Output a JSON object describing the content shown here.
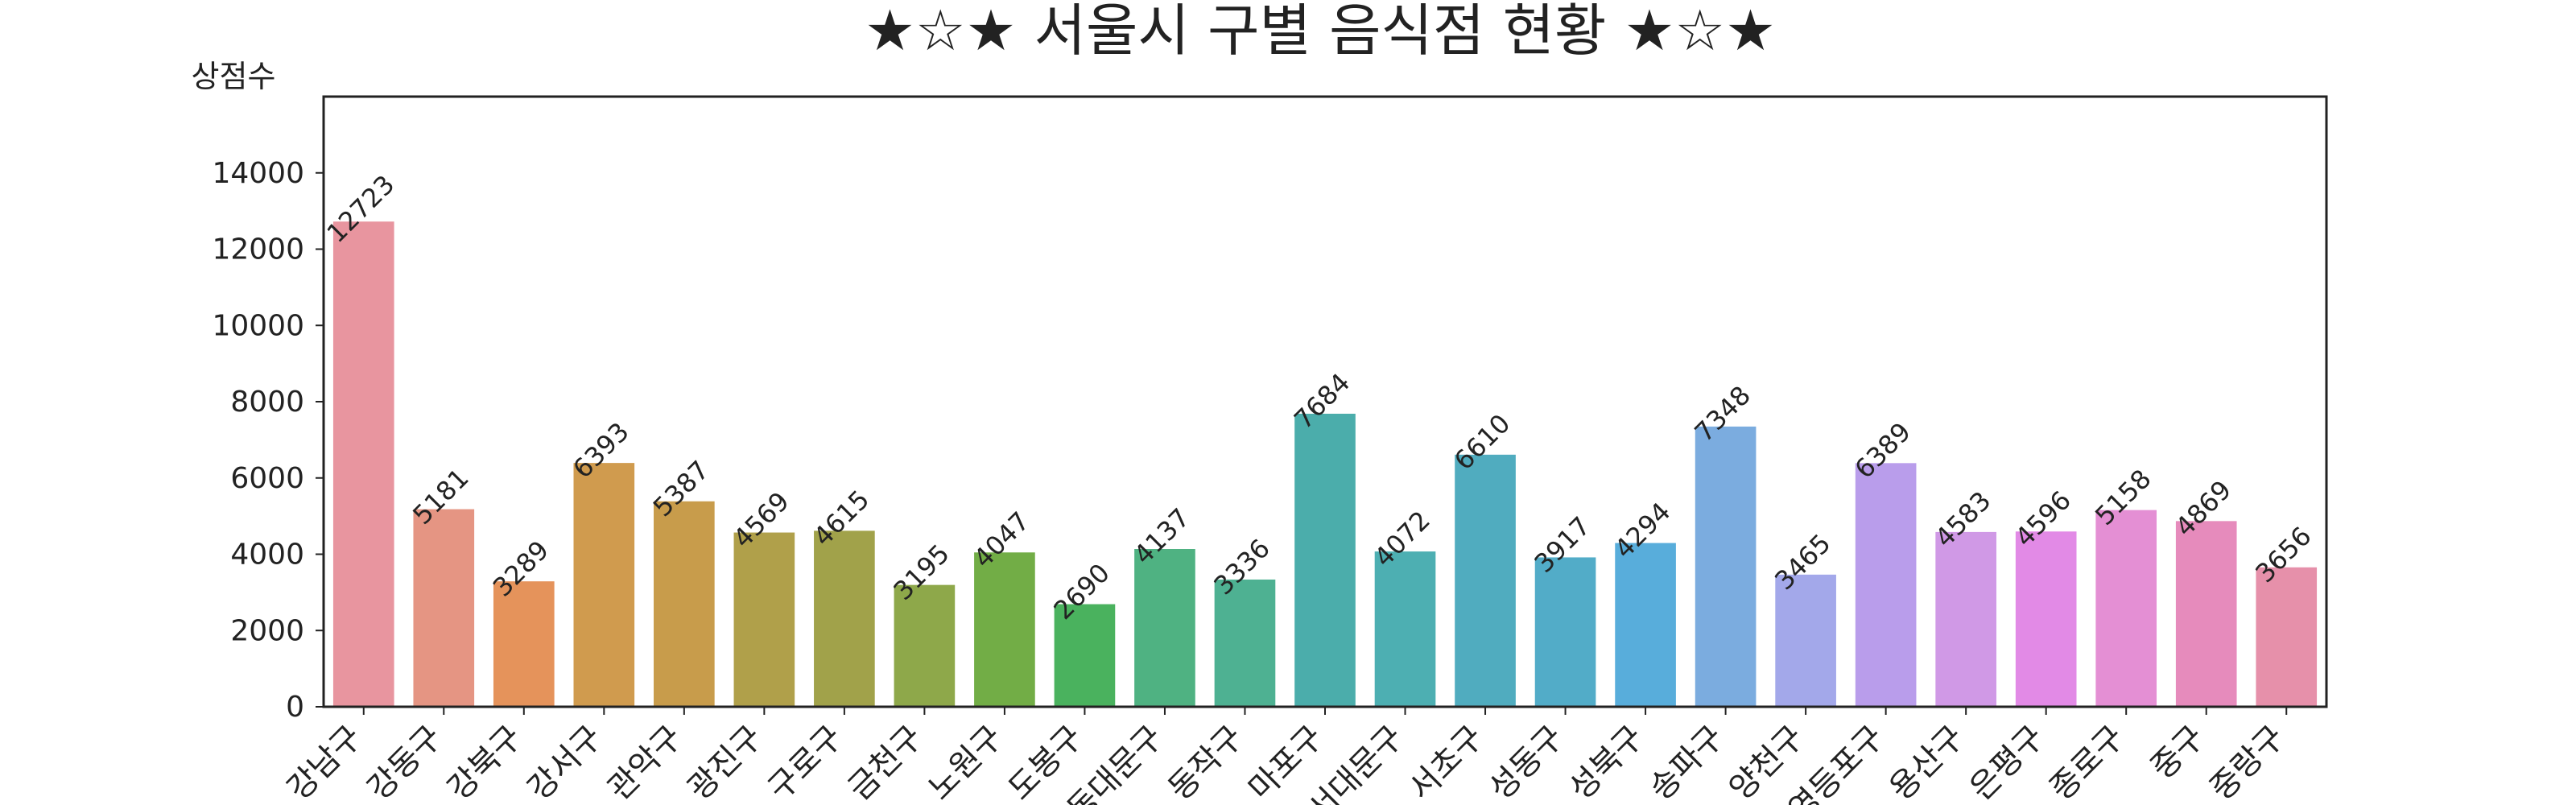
{
  "chart_data": {
    "type": "bar",
    "title": "★☆★ 서울시 구별 음식점 현황 ★☆★",
    "xlabel": "",
    "ylabel": "상점수",
    "ylim": [
      0,
      16000
    ],
    "yticks": [
      0,
      2000,
      4000,
      6000,
      8000,
      10000,
      12000,
      14000
    ],
    "grid": false,
    "categories": [
      "강남구",
      "강동구",
      "강북구",
      "강서구",
      "관악구",
      "광진구",
      "구로구",
      "금천구",
      "노원구",
      "도봉구",
      "동대문구",
      "동작구",
      "마포구",
      "서대문구",
      "서초구",
      "성동구",
      "성북구",
      "송파구",
      "양천구",
      "영등포구",
      "용산구",
      "은평구",
      "종로구",
      "중구",
      "중랑구"
    ],
    "values": [
      12723,
      5181,
      3289,
      6393,
      5387,
      4569,
      4615,
      3195,
      4047,
      2690,
      4137,
      3336,
      7684,
      4072,
      6610,
      3917,
      4294,
      7348,
      3465,
      6389,
      4583,
      4596,
      5158,
      4869,
      3656
    ],
    "colors": [
      "#e8959f",
      "#e59583",
      "#e5935b",
      "#d09b4e",
      "#c89c4b",
      "#b0a04a",
      "#a1a24a",
      "#8ea84a",
      "#72ad46",
      "#4ab25e",
      "#4fb282",
      "#4eb192",
      "#4badab",
      "#4dafb2",
      "#50acbf",
      "#52acc8",
      "#58addb",
      "#7bacdf",
      "#a3a8ea",
      "#b99deb",
      "#d099e6",
      "#e28ae6",
      "#e48fd4",
      "#e68bbc",
      "#e690aa"
    ]
  }
}
